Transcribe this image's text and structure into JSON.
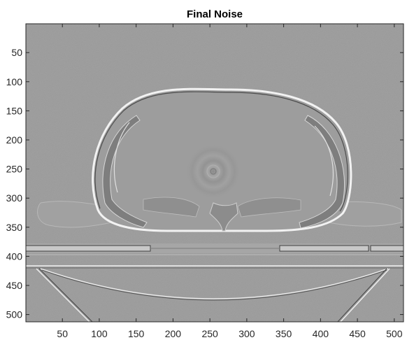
{
  "chart_data": {
    "type": "heatmap",
    "title": "Final Noise",
    "xlabel": "",
    "ylabel": "",
    "colormap": "gray",
    "xlim": [
      0.5,
      512.5
    ],
    "ylim": [
      512.5,
      0.5
    ],
    "y_axis_direction": "reverse",
    "xticks": [
      50,
      100,
      150,
      200,
      250,
      300,
      350,
      400,
      450,
      500
    ],
    "yticks": [
      50,
      100,
      150,
      200,
      250,
      300,
      350,
      400,
      450,
      500
    ],
    "xtick_labels": [
      "50",
      "100",
      "150",
      "200",
      "250",
      "300",
      "350",
      "400",
      "450",
      "500"
    ],
    "ytick_labels": [
      "50",
      "100",
      "150",
      "200",
      "250",
      "300",
      "350",
      "400",
      "450",
      "500"
    ],
    "grid": false,
    "background_color": "#9a9a9a",
    "axis_color": "#262626"
  }
}
